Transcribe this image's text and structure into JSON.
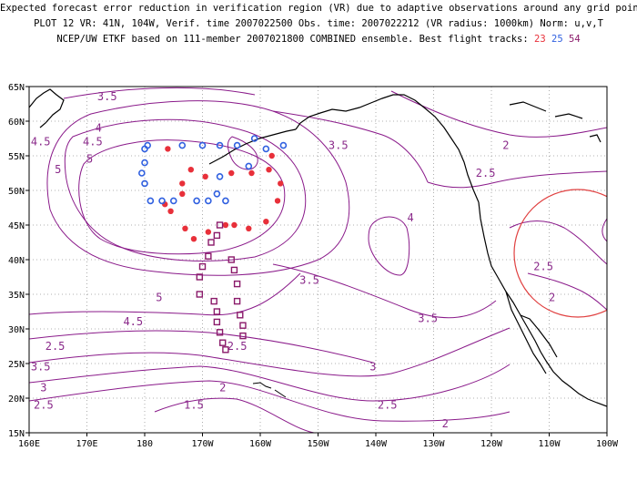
{
  "title": {
    "line1": "Expected forecast error reduction in verification region (VR) due to adaptive observations around any grid point.",
    "line2": "PLOT 12 VR: 41N, 104W, Verif. time 2007022500 Obs. time: 2007022212 (VR radius: 1000km) Norm: u,v,T",
    "line3_prefix": "NCEP/UW ETKF based on 111-member 2007021800 COMBINED ensemble.  Best flight tracks:",
    "flight_tracks": [
      {
        "id": "23",
        "color": "#e8303a"
      },
      {
        "id": "25",
        "color": "#3060e0"
      },
      {
        "id": "54",
        "color": "#8a1a6a"
      }
    ]
  },
  "axes": {
    "y_labels": [
      "65N",
      "60N",
      "55N",
      "50N",
      "45N",
      "40N",
      "35N",
      "30N",
      "25N",
      "20N",
      "15N"
    ],
    "x_labels": [
      "160E",
      "170E",
      "180",
      "170W",
      "160W",
      "150W",
      "140W",
      "130W",
      "120W",
      "110W",
      "100W"
    ],
    "lon_range": [
      160,
      260
    ],
    "lat_range": [
      15,
      65
    ]
  },
  "contour_labels": [
    {
      "text": "3.5",
      "lon": 173.5,
      "lat": 63
    },
    {
      "text": "4",
      "lon": 172,
      "lat": 58.5
    },
    {
      "text": "4.5",
      "lon": 162,
      "lat": 56.5
    },
    {
      "text": "4.5",
      "lon": 171,
      "lat": 56.5
    },
    {
      "text": "5",
      "lon": 165,
      "lat": 52.5
    },
    {
      "text": "5",
      "lon": 170.5,
      "lat": 54
    },
    {
      "text": "3.5",
      "lon": 213.5,
      "lat": 56
    },
    {
      "text": "2",
      "lon": 242.5,
      "lat": 56
    },
    {
      "text": "2.5",
      "lon": 239,
      "lat": 52
    },
    {
      "text": "4",
      "lon": 226,
      "lat": 45.5
    },
    {
      "text": "3.5",
      "lon": 208.5,
      "lat": 36.5
    },
    {
      "text": "5",
      "lon": 182.5,
      "lat": 34
    },
    {
      "text": "4.5",
      "lon": 178,
      "lat": 30.5
    },
    {
      "text": "3.5",
      "lon": 229,
      "lat": 31
    },
    {
      "text": "2.5",
      "lon": 164.5,
      "lat": 27
    },
    {
      "text": "3.5",
      "lon": 162,
      "lat": 24
    },
    {
      "text": "3",
      "lon": 162.5,
      "lat": 21
    },
    {
      "text": "2.5",
      "lon": 162.5,
      "lat": 18.5
    },
    {
      "text": "2.5",
      "lon": 196,
      "lat": 27
    },
    {
      "text": "3",
      "lon": 219.5,
      "lat": 24
    },
    {
      "text": "2",
      "lon": 193.5,
      "lat": 21
    },
    {
      "text": "2.5",
      "lon": 222,
      "lat": 18.5
    },
    {
      "text": "1.5",
      "lon": 188.5,
      "lat": 18.5
    },
    {
      "text": "2",
      "lon": 232,
      "lat": 15.8
    },
    {
      "text": "2.5",
      "lon": 249,
      "lat": 38.5
    },
    {
      "text": "2",
      "lon": 250.5,
      "lat": 34
    }
  ],
  "tracks": {
    "23": [
      [
        184,
        56
      ],
      [
        188,
        53
      ],
      [
        190.5,
        52
      ],
      [
        195,
        52.5
      ],
      [
        198.5,
        52.5
      ],
      [
        201.5,
        53
      ],
      [
        202,
        55
      ],
      [
        203.5,
        51
      ],
      [
        203,
        48.5
      ],
      [
        201,
        45.5
      ],
      [
        198,
        44.5
      ],
      [
        195.5,
        45
      ],
      [
        194,
        45
      ],
      [
        191,
        44
      ],
      [
        188.5,
        43
      ],
      [
        187,
        44.5
      ],
      [
        184.5,
        47
      ],
      [
        183.5,
        48
      ],
      [
        186.5,
        49.5
      ],
      [
        186.5,
        51
      ]
    ],
    "25": [
      [
        179.5,
        52.5
      ],
      [
        180,
        54
      ],
      [
        180.5,
        56.5
      ],
      [
        180,
        56
      ],
      [
        186.5,
        56.5
      ],
      [
        190,
        56.5
      ],
      [
        193,
        56.5
      ],
      [
        196,
        56.5
      ],
      [
        199,
        57.5
      ],
      [
        201,
        56
      ],
      [
        204,
        56.5
      ],
      [
        198,
        53.5
      ],
      [
        193,
        52
      ],
      [
        192.5,
        49.5
      ],
      [
        194,
        48.5
      ],
      [
        191,
        48.5
      ],
      [
        189,
        48.5
      ],
      [
        185,
        48.5
      ],
      [
        183,
        48.5
      ],
      [
        181,
        48.5
      ],
      [
        180,
        51
      ]
    ],
    "54": [
      [
        193,
        45
      ],
      [
        192.5,
        43.5
      ],
      [
        191.5,
        42.5
      ],
      [
        191,
        40.5
      ],
      [
        190,
        39
      ],
      [
        189.5,
        37.5
      ],
      [
        189.5,
        35
      ],
      [
        192,
        34
      ],
      [
        192.5,
        32.5
      ],
      [
        192.5,
        31
      ],
      [
        193,
        29.5
      ],
      [
        193.5,
        28
      ],
      [
        194,
        27
      ],
      [
        195,
        40
      ],
      [
        195.5,
        38.5
      ],
      [
        196,
        36.5
      ],
      [
        196,
        34
      ],
      [
        196.5,
        32
      ],
      [
        197,
        30.5
      ],
      [
        197,
        29
      ]
    ]
  },
  "verification_region": {
    "center_lon": 256,
    "center_lat": 41,
    "radius_km": 1000
  },
  "colors": {
    "contour": "#8a1a8a",
    "coast": "#000000",
    "grid": "#999999",
    "vr_circle": "#e04040"
  }
}
